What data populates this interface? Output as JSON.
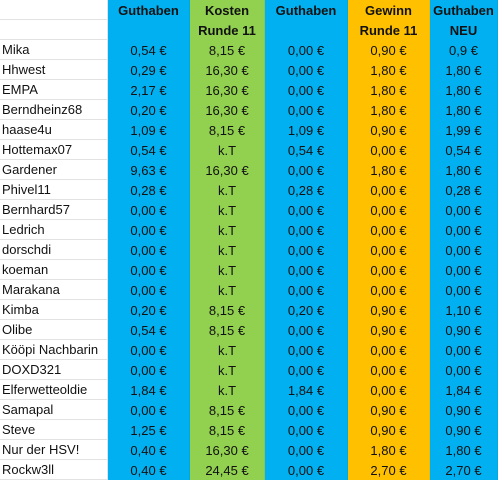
{
  "headers": {
    "top": [
      "",
      "Guthaben",
      "Kosten",
      "Guthaben",
      "Gewinn",
      "Guthaben"
    ],
    "bottom": [
      "",
      "",
      "Runde 11",
      "",
      "Runde 11",
      "NEU"
    ]
  },
  "colors": {
    "blue": "#00b0f0",
    "green": "#92d050",
    "orange": "#ffc000"
  },
  "rows": [
    [
      "Mika",
      "0,54 €",
      "8,15 €",
      "0,00 €",
      "0,90 €",
      "0,9 €"
    ],
    [
      "Hhwest",
      "0,29 €",
      "16,30 €",
      "0,00 €",
      "1,80 €",
      "1,80 €"
    ],
    [
      "EMPA",
      "2,17 €",
      "16,30 €",
      "0,00 €",
      "1,80 €",
      "1,80 €"
    ],
    [
      "Berndheinz68",
      "0,20 €",
      "16,30 €",
      "0,00 €",
      "1,80 €",
      "1,80 €"
    ],
    [
      "haase4u",
      "1,09 €",
      "8,15 €",
      "1,09 €",
      "0,90 €",
      "1,99 €"
    ],
    [
      "Hottemax07",
      "0,54 €",
      "k.T",
      "0,54 €",
      "0,00 €",
      "0,54 €"
    ],
    [
      "Gardener",
      "9,63 €",
      "16,30 €",
      "0,00 €",
      "1,80 €",
      "1,80 €"
    ],
    [
      "Phivel11",
      "0,28 €",
      "k.T",
      "0,28 €",
      "0,00 €",
      "0,28 €"
    ],
    [
      "Bernhard57",
      "0,00 €",
      "k.T",
      "0,00 €",
      "0,00 €",
      "0,00 €"
    ],
    [
      "Ledrich",
      "0,00 €",
      "k.T",
      "0,00 €",
      "0,00 €",
      "0,00 €"
    ],
    [
      "dorschdi",
      "0,00 €",
      "k.T",
      "0,00 €",
      "0,00 €",
      "0,00 €"
    ],
    [
      "koeman",
      "0,00 €",
      "k.T",
      "0,00 €",
      "0,00 €",
      "0,00 €"
    ],
    [
      "Marakana",
      "0,00 €",
      "k.T",
      "0,00 €",
      "0,00 €",
      "0,00 €"
    ],
    [
      "Kimba",
      "0,20 €",
      "8,15 €",
      "0,20 €",
      "0,90 €",
      "1,10 €"
    ],
    [
      "Olibe",
      "0,54 €",
      "8,15 €",
      "0,00 €",
      "0,90 €",
      "0,90 €"
    ],
    [
      "Kööpi Nachbarin",
      "0,00 €",
      "k.T",
      "0,00 €",
      "0,00 €",
      "0,00 €"
    ],
    [
      "DOXD321",
      "0,00 €",
      "k.T",
      "0,00 €",
      "0,00 €",
      "0,00 €"
    ],
    [
      "Elferwetteoldie",
      "1,84 €",
      "k.T",
      "1,84 €",
      "0,00 €",
      "1,84 €"
    ],
    [
      "Samapal",
      "0,00 €",
      "8,15 €",
      "0,00 €",
      "0,90 €",
      "0,90 €"
    ],
    [
      "Steve",
      "1,25 €",
      "8,15 €",
      "0,00 €",
      "0,90 €",
      "0,90 €"
    ],
    [
      "Nur der HSV!",
      "0,40 €",
      "16,30 €",
      "0,00 €",
      "1,80 €",
      "1,80 €"
    ],
    [
      "Rockw3ll",
      "0,40 €",
      "24,45 €",
      "0,00 €",
      "2,70 €",
      "2,70 €"
    ]
  ]
}
